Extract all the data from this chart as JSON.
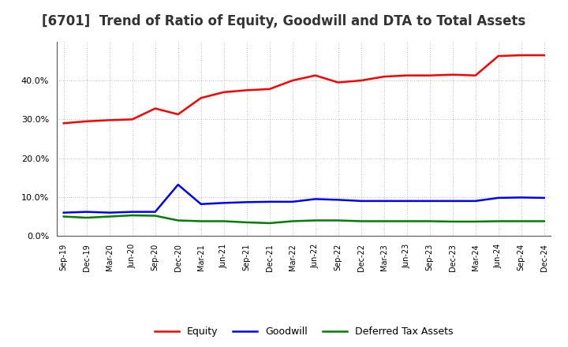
{
  "title": "[6701]  Trend of Ratio of Equity, Goodwill and DTA to Total Assets",
  "x_labels": [
    "Sep-19",
    "Dec-19",
    "Mar-20",
    "Jun-20",
    "Sep-20",
    "Dec-20",
    "Mar-21",
    "Jun-21",
    "Sep-21",
    "Dec-21",
    "Mar-22",
    "Jun-22",
    "Sep-22",
    "Dec-22",
    "Mar-23",
    "Jun-23",
    "Sep-23",
    "Dec-23",
    "Mar-24",
    "Jun-24",
    "Sep-24",
    "Dec-24"
  ],
  "equity": [
    0.29,
    0.295,
    0.298,
    0.3,
    0.328,
    0.313,
    0.355,
    0.37,
    0.375,
    0.378,
    0.4,
    0.413,
    0.395,
    0.4,
    0.41,
    0.413,
    0.413,
    0.415,
    0.413,
    0.463,
    0.465,
    0.465
  ],
  "goodwill": [
    0.06,
    0.062,
    0.06,
    0.062,
    0.062,
    0.132,
    0.082,
    0.085,
    0.087,
    0.088,
    0.088,
    0.095,
    0.093,
    0.09,
    0.09,
    0.09,
    0.09,
    0.09,
    0.09,
    0.098,
    0.099,
    0.098
  ],
  "dta": [
    0.05,
    0.047,
    0.05,
    0.053,
    0.052,
    0.04,
    0.038,
    0.038,
    0.035,
    0.033,
    0.038,
    0.04,
    0.04,
    0.038,
    0.038,
    0.038,
    0.038,
    0.037,
    0.037,
    0.038,
    0.038,
    0.038
  ],
  "equity_color": "#ff0000",
  "goodwill_color": "#0000ff",
  "dta_color": "#008000",
  "ylim": [
    0.0,
    0.5
  ],
  "yticks": [
    0.0,
    0.1,
    0.2,
    0.3,
    0.4
  ],
  "background_color": "#ffffff",
  "grid_color": "#aaaaaa",
  "title_fontsize": 12,
  "title_color": "#333333"
}
